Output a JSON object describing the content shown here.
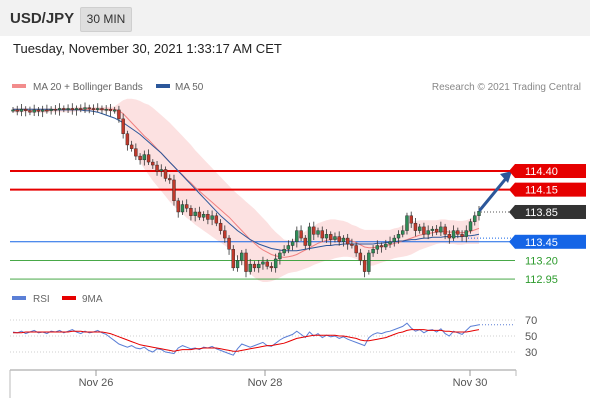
{
  "header": {
    "symbol": "USD/JPY",
    "timeframe": "30 MIN",
    "datetime": "Tuesday, November 30, 2021 1:33:17 AM CET"
  },
  "legend": {
    "items": [
      {
        "label": "MA 20 + Bollinger Bands",
        "color": "#f28c8c"
      },
      {
        "label": "MA 50",
        "color": "#2b579a"
      }
    ],
    "copyright": "Research © 2021 Trading Central"
  },
  "levels": [
    {
      "value": 114.4,
      "label": "114.40",
      "style": "red-line-box",
      "color": "#e60000"
    },
    {
      "value": 114.15,
      "label": "114.15",
      "style": "red-line-box",
      "color": "#e60000"
    },
    {
      "value": 113.85,
      "label": "113.85",
      "style": "dark-box",
      "color": "#333333"
    },
    {
      "value": 113.45,
      "label": "113.45",
      "style": "blue-line-box",
      "color": "#1565e6"
    },
    {
      "value": 113.2,
      "label": "113.20",
      "style": "green-line-text",
      "color": "#2d9b2d"
    },
    {
      "value": 112.95,
      "label": "112.95",
      "style": "green-line-text",
      "color": "#2d9b2d"
    }
  ],
  "rsi": {
    "legend": [
      {
        "label": "RSI",
        "color": "#5b7fd6"
      },
      {
        "label": "9MA",
        "color": "#e60000"
      }
    ],
    "ticks": [
      "70",
      "50",
      "30"
    ]
  },
  "x_axis": {
    "labels": [
      "Nov 26",
      "Nov 28",
      "Nov 30"
    ]
  },
  "chart_data": {
    "type": "candlestick",
    "price_range": [
      112.87,
      115.38
    ],
    "close_series": [
      115.22,
      115.2,
      115.23,
      115.21,
      115.19,
      115.22,
      115.2,
      115.22,
      115.21,
      115.23,
      115.22,
      115.24,
      115.23,
      115.24,
      115.22,
      115.24,
      115.23,
      115.25,
      115.24,
      115.23,
      115.24,
      115.22,
      115.23,
      115.21,
      115.22,
      115.1,
      114.9,
      114.75,
      114.7,
      114.6,
      114.55,
      114.62,
      114.52,
      114.48,
      114.4,
      114.42,
      114.3,
      114.28,
      114.0,
      113.85,
      113.95,
      113.9,
      113.8,
      113.85,
      113.78,
      113.82,
      113.75,
      113.8,
      113.7,
      113.6,
      113.5,
      113.35,
      113.1,
      113.2,
      113.3,
      113.05,
      113.15,
      113.1,
      113.15,
      113.18,
      113.12,
      113.1,
      113.22,
      113.3,
      113.35,
      113.4,
      113.45,
      113.6,
      113.5,
      113.4,
      113.65,
      113.55,
      113.6,
      113.5,
      113.55,
      113.48,
      113.52,
      113.45,
      113.5,
      113.42,
      113.4,
      113.3,
      113.2,
      113.05,
      113.3,
      113.35,
      113.4,
      113.38,
      113.42,
      113.45,
      113.5,
      113.55,
      113.6,
      113.8,
      113.7,
      113.6,
      113.65,
      113.55,
      113.6,
      113.62,
      113.58,
      113.65,
      113.55,
      113.5,
      113.6,
      113.55,
      113.52,
      113.6,
      113.72,
      113.8,
      113.86
    ],
    "ma20_series": [
      115.22,
      115.21,
      115.22,
      115.22,
      115.21,
      115.21,
      115.21,
      115.21,
      115.21,
      115.22,
      115.22,
      115.22,
      115.22,
      115.22,
      115.22,
      115.23,
      115.23,
      115.23,
      115.23,
      115.23,
      115.23,
      115.23,
      115.23,
      115.23,
      115.23,
      115.21,
      115.17,
      115.11,
      115.05,
      114.99,
      114.93,
      114.87,
      114.82,
      114.76,
      114.7,
      114.64,
      114.58,
      114.52,
      114.46,
      114.4,
      114.35,
      114.29,
      114.24,
      114.18,
      114.13,
      114.08,
      114.03,
      113.98,
      113.93,
      113.88,
      113.83,
      113.78,
      113.72,
      113.66,
      113.6,
      113.54,
      113.48,
      113.43,
      113.38,
      113.34,
      113.31,
      113.28,
      113.26,
      113.25,
      113.24,
      113.25,
      113.26,
      113.28,
      113.31,
      113.34,
      113.37,
      113.4,
      113.43,
      113.45,
      113.47,
      113.48,
      113.49,
      113.49,
      113.49,
      113.48,
      113.46,
      113.44,
      113.41,
      113.38,
      113.37,
      113.37,
      113.38,
      113.39,
      113.4,
      113.41,
      113.43,
      113.44,
      113.46,
      113.48,
      113.5,
      113.52,
      113.54,
      113.55,
      113.56,
      113.57,
      113.58,
      113.59,
      113.59,
      113.58,
      113.58,
      113.57,
      113.57,
      113.58,
      113.59,
      113.61,
      113.63
    ],
    "ma50_series": [
      115.23,
      115.23,
      115.23,
      115.23,
      115.23,
      115.23,
      115.23,
      115.23,
      115.23,
      115.23,
      115.22,
      115.22,
      115.22,
      115.22,
      115.22,
      115.22,
      115.22,
      115.21,
      115.21,
      115.2,
      115.19,
      115.17,
      115.15,
      115.13,
      115.11,
      115.08,
      115.05,
      115.01,
      114.97,
      114.93,
      114.89,
      114.84,
      114.79,
      114.74,
      114.69,
      114.64,
      114.58,
      114.52,
      114.46,
      114.4,
      114.34,
      114.28,
      114.22,
      114.16,
      114.1,
      114.04,
      113.98,
      113.92,
      113.86,
      113.8,
      113.75,
      113.7,
      113.65,
      113.6,
      113.56,
      113.52,
      113.48,
      113.45,
      113.42,
      113.4,
      113.38,
      113.36,
      113.35,
      113.34,
      113.33,
      113.33,
      113.33,
      113.33,
      113.34,
      113.35,
      113.36,
      113.37,
      113.38,
      113.39,
      113.4,
      113.4,
      113.41,
      113.41,
      113.42,
      113.42,
      113.42,
      113.42,
      113.42,
      113.42,
      113.42,
      113.42,
      113.43,
      113.43,
      113.44,
      113.44,
      113.45,
      113.46,
      113.46,
      113.47,
      113.48,
      113.48,
      113.49,
      113.5,
      113.5,
      113.51,
      113.51,
      113.51,
      113.52,
      113.52,
      113.52,
      113.52,
      113.52,
      113.53,
      113.53,
      113.54,
      113.55
    ],
    "bollinger_width": [
      0.03,
      0.03,
      0.03,
      0.03,
      0.03,
      0.03,
      0.03,
      0.03,
      0.03,
      0.03,
      0.03,
      0.03,
      0.03,
      0.03,
      0.03,
      0.03,
      0.03,
      0.03,
      0.03,
      0.03,
      0.03,
      0.03,
      0.03,
      0.03,
      0.04,
      0.1,
      0.18,
      0.26,
      0.32,
      0.37,
      0.41,
      0.44,
      0.47,
      0.49,
      0.5,
      0.51,
      0.52,
      0.53,
      0.53,
      0.53,
      0.52,
      0.52,
      0.51,
      0.5,
      0.49,
      0.48,
      0.47,
      0.46,
      0.45,
      0.44,
      0.43,
      0.42,
      0.42,
      0.43,
      0.44,
      0.45,
      0.46,
      0.46,
      0.45,
      0.43,
      0.4,
      0.36,
      0.32,
      0.28,
      0.24,
      0.22,
      0.22,
      0.23,
      0.24,
      0.25,
      0.26,
      0.26,
      0.27,
      0.27,
      0.27,
      0.27,
      0.26,
      0.25,
      0.24,
      0.23,
      0.22,
      0.22,
      0.22,
      0.23,
      0.24,
      0.24,
      0.23,
      0.22,
      0.21,
      0.2,
      0.2,
      0.2,
      0.21,
      0.22,
      0.22,
      0.21,
      0.2,
      0.19,
      0.18,
      0.17,
      0.16,
      0.16,
      0.16,
      0.16,
      0.16,
      0.16,
      0.16,
      0.16,
      0.17,
      0.19,
      0.21
    ],
    "forecast_arrow": {
      "from": 113.85,
      "to": 114.4
    },
    "rsi": {
      "range": [
        10,
        90
      ],
      "rsi_series": [
        55,
        54,
        56,
        53,
        55,
        57,
        54,
        55,
        53,
        56,
        55,
        57,
        54,
        56,
        58,
        55,
        53,
        56,
        54,
        55,
        57,
        54,
        52,
        48,
        44,
        40,
        38,
        36,
        38,
        35,
        34,
        36,
        32,
        30,
        34,
        33,
        30,
        29,
        28,
        35,
        38,
        36,
        34,
        35,
        33,
        36,
        35,
        37,
        34,
        32,
        30,
        28,
        26,
        34,
        40,
        38,
        36,
        38,
        40,
        42,
        38,
        37,
        41,
        45,
        48,
        50,
        52,
        56,
        52,
        48,
        55,
        50,
        53,
        48,
        51,
        49,
        50,
        47,
        49,
        46,
        44,
        42,
        40,
        38,
        48,
        52,
        54,
        53,
        55,
        56,
        58,
        60,
        62,
        66,
        60,
        56,
        58,
        54,
        57,
        58,
        55,
        59,
        53,
        50,
        56,
        54,
        52,
        57,
        62,
        63,
        64
      ],
      "ma9_series": [
        54,
        54,
        54,
        55,
        55,
        55,
        55,
        55,
        55,
        55,
        55,
        55,
        55,
        55,
        56,
        56,
        56,
        55,
        55,
        55,
        55,
        55,
        54,
        53,
        51,
        49,
        47,
        45,
        43,
        41,
        39,
        38,
        37,
        36,
        35,
        34,
        33,
        32,
        31,
        32,
        33,
        33,
        33,
        34,
        34,
        35,
        35,
        35,
        35,
        34,
        33,
        32,
        31,
        31,
        32,
        33,
        34,
        35,
        36,
        37,
        38,
        38,
        39,
        40,
        41,
        43,
        45,
        47,
        48,
        49,
        50,
        51,
        51,
        51,
        51,
        51,
        51,
        50,
        50,
        49,
        48,
        47,
        45,
        44,
        44,
        45,
        46,
        47,
        48,
        50,
        52,
        54,
        55,
        57,
        58,
        58,
        58,
        58,
        57,
        57,
        57,
        57,
        56,
        56,
        55,
        55,
        55,
        55,
        56,
        57,
        58
      ]
    }
  }
}
